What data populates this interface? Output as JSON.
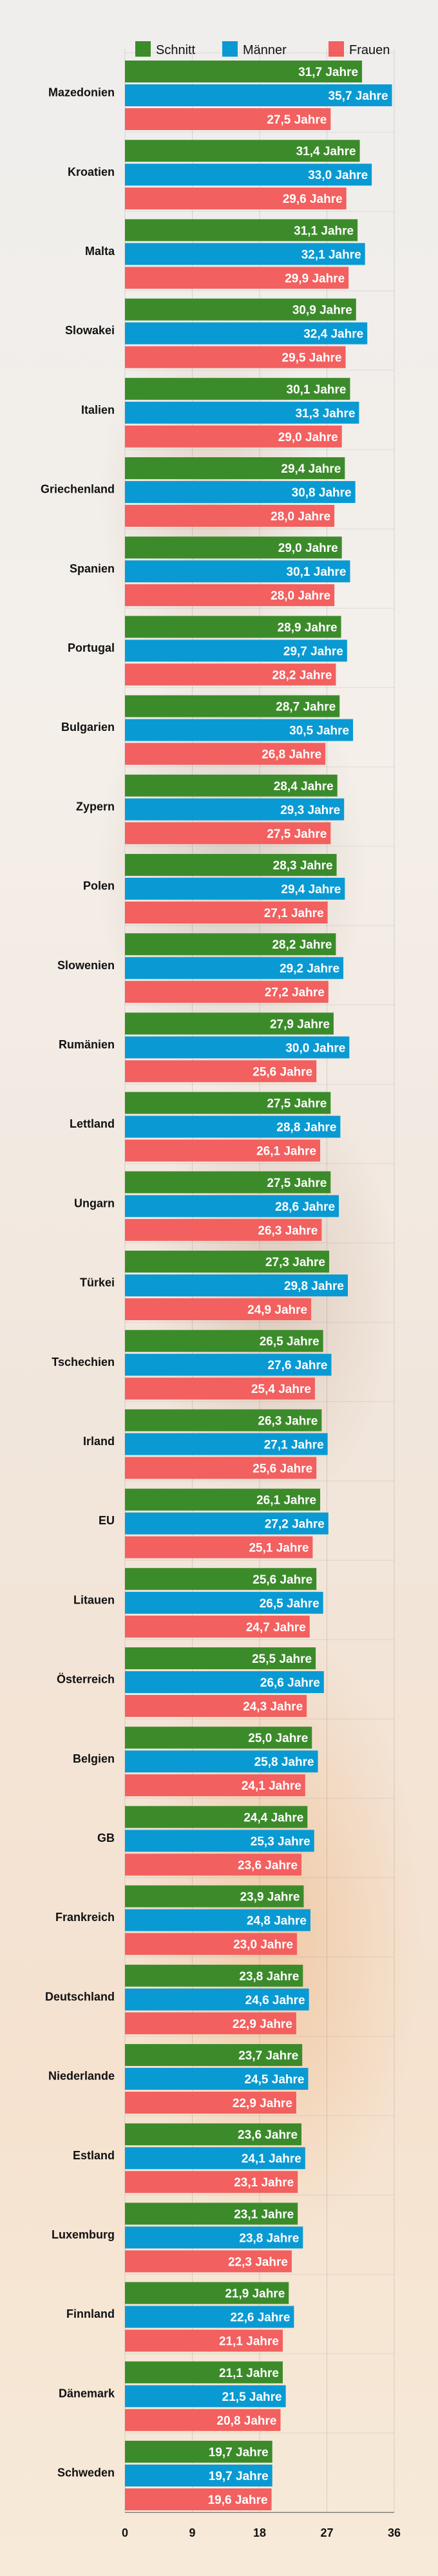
{
  "chart_data": {
    "type": "bar",
    "orientation": "horizontal",
    "legend_position": "top",
    "grid": true,
    "xlim": [
      0,
      36
    ],
    "x_ticks": [
      "0",
      "9",
      "18",
      "27",
      "36"
    ],
    "value_suffix": " Jahre",
    "categories": [
      "Mazedonien",
      "Kroatien",
      "Malta",
      "Slowakei",
      "Italien",
      "Griechenland",
      "Spanien",
      "Portugal",
      "Bulgarien",
      "Zypern",
      "Polen",
      "Slowenien",
      "Rumänien",
      "Lettland",
      "Ungarn",
      "Türkei",
      "Tschechien",
      "Irland",
      "EU",
      "Litauen",
      "Österreich",
      "Belgien",
      "GB",
      "Frankreich",
      "Deutschland",
      "Niederlande",
      "Estland",
      "Luxemburg",
      "Finnland",
      "Dänemark",
      "Schweden"
    ],
    "series": [
      {
        "name": "Schnitt",
        "color": "#3c8b2b",
        "values": [
          31.7,
          31.4,
          31.1,
          30.9,
          30.1,
          29.4,
          29.0,
          28.9,
          28.7,
          28.4,
          28.3,
          28.2,
          27.9,
          27.5,
          27.5,
          27.3,
          26.5,
          26.3,
          26.1,
          25.6,
          25.5,
          25.0,
          24.4,
          23.9,
          23.8,
          23.7,
          23.6,
          23.1,
          21.9,
          21.1,
          19.7
        ],
        "labels": [
          "31,7 Jahre",
          "31,4 Jahre",
          "31,1 Jahre",
          "30,9 Jahre",
          "30,1 Jahre",
          "29,4 Jahre",
          "29,0 Jahre",
          "28,9 Jahre",
          "28,7 Jahre",
          "28,4 Jahre",
          "28,3 Jahre",
          "28,2 Jahre",
          "27,9 Jahre",
          "27,5 Jahre",
          "27,5 Jahre",
          "27,3 Jahre",
          "26,5 Jahre",
          "26,3 Jahre",
          "26,1 Jahre",
          "25,6 Jahre",
          "25,5 Jahre",
          "25,0 Jahre",
          "24,4 Jahre",
          "23,9 Jahre",
          "23,8 Jahre",
          "23,7 Jahre",
          "23,6 Jahre",
          "23,1 Jahre",
          "21,9 Jahre",
          "21,1 Jahre",
          "19,7 Jahre"
        ]
      },
      {
        "name": "Männer",
        "color": "#0a9ad3",
        "values": [
          35.7,
          33.0,
          32.1,
          32.4,
          31.3,
          30.8,
          30.1,
          29.7,
          30.5,
          29.3,
          29.4,
          29.2,
          30.0,
          28.8,
          28.6,
          29.8,
          27.6,
          27.1,
          27.2,
          26.5,
          26.6,
          25.8,
          25.3,
          24.8,
          24.6,
          24.5,
          24.1,
          23.8,
          22.6,
          21.5,
          19.7
        ],
        "labels": [
          "35,7 Jahre",
          "33,0 Jahre",
          "32,1 Jahre",
          "32,4 Jahre",
          "31,3 Jahre",
          "30,8 Jahre",
          "30,1 Jahre",
          "29,7 Jahre",
          "30,5 Jahre",
          "29,3 Jahre",
          "29,4 Jahre",
          "29,2 Jahre",
          "30,0 Jahre",
          "28,8 Jahre",
          "28,6 Jahre",
          "29,8 Jahre",
          "27,6 Jahre",
          "27,1 Jahre",
          "27,2 Jahre",
          "26,5 Jahre",
          "26,6 Jahre",
          "25,8 Jahre",
          "25,3 Jahre",
          "24,8 Jahre",
          "24,6 Jahre",
          "24,5 Jahre",
          "24,1 Jahre",
          "23,8 Jahre",
          "22,6 Jahre",
          "21,5 Jahre",
          "19,7 Jahre"
        ]
      },
      {
        "name": "Frauen",
        "color": "#f2605f",
        "values": [
          27.5,
          29.6,
          29.9,
          29.5,
          29.0,
          28.0,
          28.0,
          28.2,
          26.8,
          27.5,
          27.1,
          27.2,
          25.6,
          26.1,
          26.3,
          24.9,
          25.4,
          25.6,
          25.1,
          24.7,
          24.3,
          24.1,
          23.6,
          23.0,
          22.9,
          22.9,
          23.1,
          22.3,
          21.1,
          20.8,
          19.6
        ],
        "labels": [
          "27,5 Jahre",
          "29,6 Jahre",
          "29,9 Jahre",
          "29,5 Jahre",
          "29,0 Jahre",
          "28,0 Jahre",
          "28,0 Jahre",
          "28,2 Jahre",
          "26,8 Jahre",
          "27,5 Jahre",
          "27,1 Jahre",
          "27,2 Jahre",
          "25,6 Jahre",
          "26,1 Jahre",
          "26,3 Jahre",
          "24,9 Jahre",
          "25,4 Jahre",
          "25,6 Jahre",
          "25,1 Jahre",
          "24,7 Jahre",
          "24,3 Jahre",
          "24,1 Jahre",
          "23,6 Jahre",
          "23,0 Jahre",
          "22,9 Jahre",
          "22,9 Jahre",
          "23,1 Jahre",
          "22,3 Jahre",
          "21,1 Jahre",
          "20,8 Jahre",
          "19,6 Jahre"
        ]
      }
    ]
  }
}
